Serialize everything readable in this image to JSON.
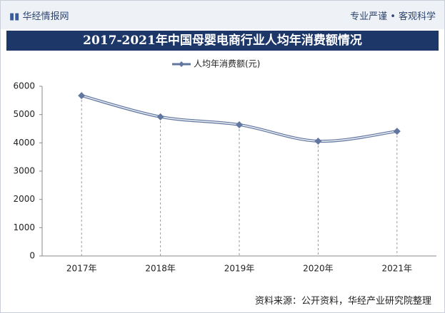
{
  "header": {
    "logo": "华经情报网",
    "tagline": "专业严谨 • 客观科学"
  },
  "chart_data": {
    "type": "line",
    "title": "2017-2021年中国母婴电商行业人均年消费额情况",
    "categories": [
      "2017年",
      "2018年",
      "2019年",
      "2020年",
      "2021年"
    ],
    "series": [
      {
        "name": "人均年消费额(元)",
        "color": "#62779f",
        "values": [
          5670,
          4920,
          4640,
          4060,
          4410
        ]
      }
    ],
    "ylim": [
      0,
      6000
    ],
    "yticks": [
      0,
      1000,
      2000,
      3000,
      4000,
      5000,
      6000
    ],
    "drop_lines": true
  },
  "source": "资料来源：公开资料，华经产业研究院整理"
}
